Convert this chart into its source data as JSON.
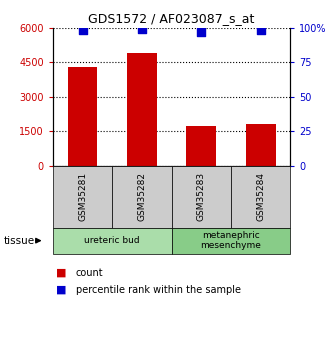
{
  "title": "GDS1572 / AF023087_s_at",
  "samples": [
    "GSM35281",
    "GSM35282",
    "GSM35283",
    "GSM35284"
  ],
  "counts": [
    4300,
    4900,
    1700,
    1800
  ],
  "percentile_ranks": [
    98,
    99,
    97,
    98
  ],
  "bar_color": "#cc0000",
  "dot_color": "#0000cc",
  "ylim_left": [
    0,
    6000
  ],
  "ylim_right": [
    0,
    100
  ],
  "yticks_left": [
    0,
    1500,
    3000,
    4500,
    6000
  ],
  "yticks_right": [
    0,
    25,
    50,
    75,
    100
  ],
  "ytick_labels_left": [
    "0",
    "1500",
    "3000",
    "4500",
    "6000"
  ],
  "ytick_labels_right": [
    "0",
    "25",
    "50",
    "75",
    "100%"
  ],
  "left_tick_color": "#cc0000",
  "right_tick_color": "#0000cc",
  "grid_color": "#000000",
  "tissues": [
    {
      "label": "ureteric bud",
      "samples": [
        0,
        1
      ],
      "color": "#aaddaa"
    },
    {
      "label": "metanephric\nmesenchyme",
      "samples": [
        2,
        3
      ],
      "color": "#88cc88"
    }
  ],
  "tissue_label": "tissue",
  "legend_count_label": "count",
  "legend_pct_label": "percentile rank within the sample",
  "background_color": "#ffffff",
  "plot_bg_color": "#ffffff",
  "sample_box_color": "#cccccc",
  "bar_width": 0.5
}
